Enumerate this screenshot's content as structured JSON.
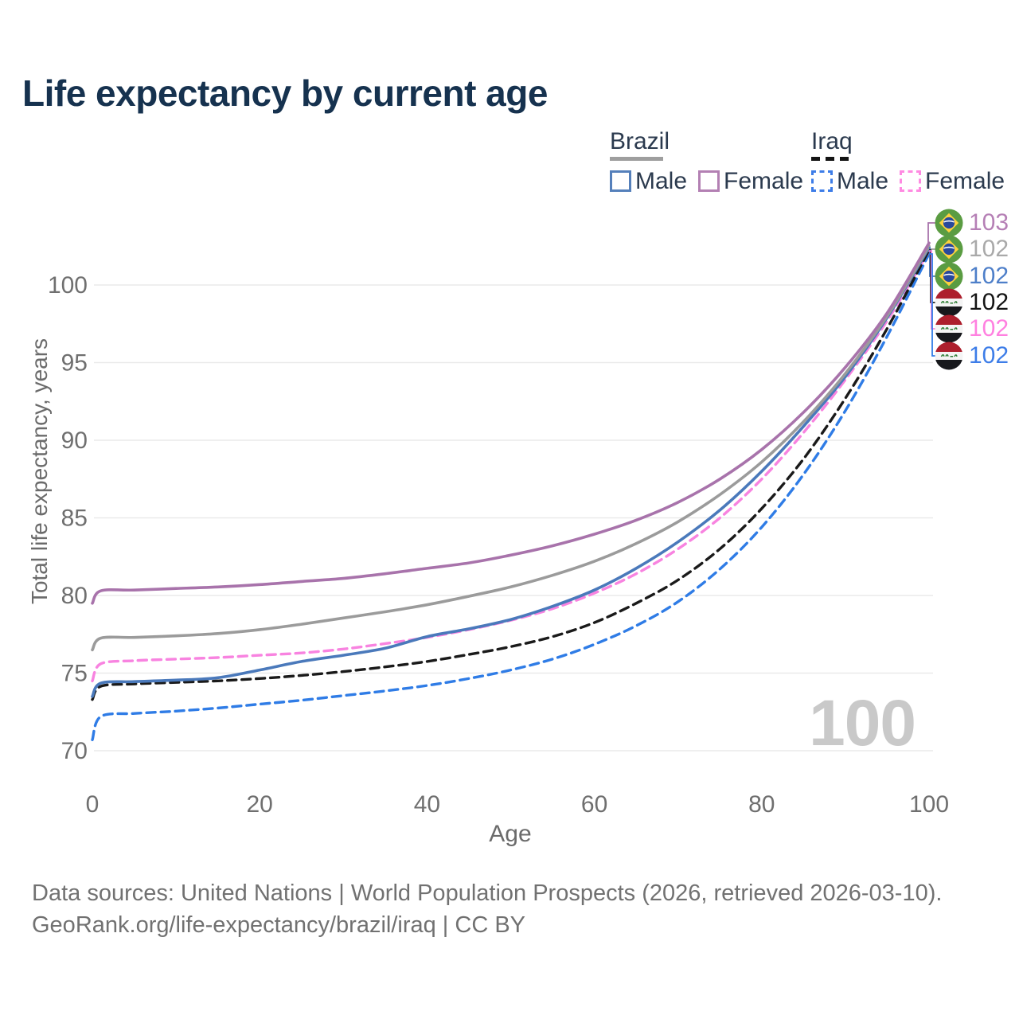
{
  "header": {
    "title": "Life expectancy by current age"
  },
  "legend": {
    "groups": [
      {
        "label": "Brazil",
        "dashed": false,
        "underline_color": "#9e9e9e",
        "items": [
          {
            "label": "Male",
            "color": "#5580bb"
          },
          {
            "label": "Female",
            "color": "#b380b3"
          }
        ]
      },
      {
        "label": "Iraq",
        "dashed": true,
        "underline_color": "#141414",
        "items": [
          {
            "label": "Male",
            "color": "#3d7de8"
          },
          {
            "label": "Female",
            "color": "#ff8ae2"
          }
        ]
      }
    ]
  },
  "chart_data": {
    "type": "line",
    "title": "Life expectancy by current age",
    "xlabel": "Age",
    "ylabel": "Total life expectancy, years",
    "x_ticks": [
      0,
      20,
      40,
      60,
      80,
      100
    ],
    "y_ticks": [
      70,
      75,
      80,
      85,
      90,
      95,
      100
    ],
    "xlim": [
      0,
      100
    ],
    "ylim": [
      70,
      103.3
    ],
    "grid": "horizontal",
    "legend_position": "top-right",
    "watermark": "100",
    "x": [
      0,
      1,
      5,
      10,
      15,
      20,
      25,
      30,
      35,
      40,
      45,
      50,
      55,
      60,
      65,
      70,
      75,
      80,
      85,
      90,
      95,
      100
    ],
    "series": [
      {
        "name": "Brazil Female",
        "country": "Brazil",
        "sex": "Female",
        "color": "#a873ab",
        "dashed": false,
        "end_label": "103",
        "values": [
          79.5,
          80.3,
          80.35,
          80.45,
          80.55,
          80.7,
          80.9,
          81.1,
          81.4,
          81.75,
          82.1,
          82.6,
          83.2,
          83.95,
          84.85,
          86.0,
          87.5,
          89.4,
          91.8,
          94.7,
          98.2,
          102.7
        ]
      },
      {
        "name": "Brazil",
        "country": "Brazil",
        "sex": "All",
        "color": "#9b9b9b",
        "dashed": false,
        "end_label": "102",
        "values": [
          76.5,
          77.25,
          77.3,
          77.4,
          77.55,
          77.8,
          78.15,
          78.55,
          78.95,
          79.4,
          79.95,
          80.55,
          81.3,
          82.2,
          83.35,
          84.75,
          86.5,
          88.6,
          91.2,
          94.3,
          98.0,
          102.5
        ]
      },
      {
        "name": "Brazil Male",
        "country": "Brazil",
        "sex": "Male",
        "color": "#4a79bb",
        "dashed": false,
        "end_label": "102",
        "values": [
          73.5,
          74.35,
          74.45,
          74.55,
          74.7,
          75.2,
          75.75,
          76.15,
          76.6,
          77.35,
          77.85,
          78.45,
          79.3,
          80.35,
          81.75,
          83.45,
          85.5,
          88.0,
          90.9,
          94.1,
          97.9,
          102.4
        ]
      },
      {
        "name": "Iraq",
        "country": "Iraq",
        "sex": "All",
        "color": "#1a1a1a",
        "dashed": true,
        "end_label": "102",
        "values": [
          73.3,
          74.15,
          74.3,
          74.4,
          74.5,
          74.65,
          74.85,
          75.1,
          75.4,
          75.75,
          76.2,
          76.7,
          77.35,
          78.25,
          79.5,
          81.0,
          83.0,
          85.6,
          88.8,
          92.7,
          97.2,
          102.25
        ]
      },
      {
        "name": "Iraq Female",
        "country": "Iraq",
        "sex": "Female",
        "color": "#f883e0",
        "dashed": true,
        "end_label": "102",
        "values": [
          74.5,
          75.6,
          75.8,
          75.9,
          76.0,
          76.15,
          76.3,
          76.55,
          76.9,
          77.3,
          77.8,
          78.4,
          79.15,
          80.15,
          81.4,
          83.0,
          85.0,
          87.5,
          90.5,
          93.9,
          97.7,
          102.2
        ]
      },
      {
        "name": "Iraq Male",
        "country": "Iraq",
        "sex": "Male",
        "color": "#2f7ce6",
        "dashed": true,
        "end_label": "102",
        "values": [
          70.7,
          72.2,
          72.4,
          72.55,
          72.75,
          73.0,
          73.25,
          73.55,
          73.85,
          74.2,
          74.65,
          75.2,
          75.9,
          76.85,
          78.05,
          79.6,
          81.7,
          84.4,
          87.8,
          91.9,
          96.7,
          102.0
        ]
      }
    ]
  },
  "end_labels": [
    {
      "value": "103",
      "color": "#b57fb5",
      "flag": "brazil"
    },
    {
      "value": "102",
      "color": "#a9a9a9",
      "flag": "brazil"
    },
    {
      "value": "102",
      "color": "#4e7fc9",
      "flag": "brazil"
    },
    {
      "value": "102",
      "color": "#141414",
      "flag": "iraq"
    },
    {
      "value": "102",
      "color": "#ff80e0",
      "flag": "iraq"
    },
    {
      "value": "102",
      "color": "#3d7de8",
      "flag": "iraq"
    }
  ],
  "footer": {
    "line1": "Data sources: United Nations | World Population Prospects (2026, retrieved 2026-03-10).",
    "line2": "GeoRank.org/life-expectancy/brazil/iraq | CC BY"
  }
}
